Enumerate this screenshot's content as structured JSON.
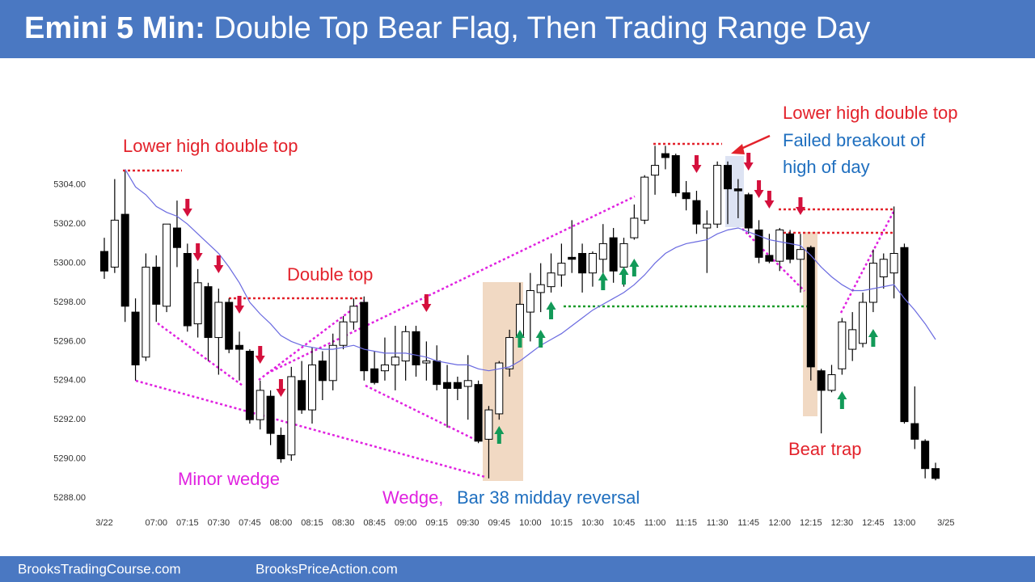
{
  "header": {
    "label": "Emini 5 Min:",
    "title": "Double Top Bear Flag, Then Trading Range Day"
  },
  "footer": {
    "left": "BrooksTradingCourse.com",
    "right": "BrooksPriceAction.com"
  },
  "chart_data": {
    "type": "candlestick",
    "categories": [
      "3/22",
      null,
      null,
      null,
      null,
      "07:00",
      null,
      null,
      "07:15",
      null,
      null,
      "07:30",
      null,
      null,
      "07:45",
      null,
      null,
      "08:00",
      null,
      null,
      "08:15",
      null,
      null,
      "08:30",
      null,
      null,
      "08:45",
      null,
      null,
      "09:00",
      null,
      null,
      "09:15",
      null,
      null,
      "09:30",
      null,
      null,
      "09:45",
      null,
      null,
      "10:00",
      null,
      null,
      "10:15",
      null,
      null,
      "10:30",
      null,
      null,
      "10:45",
      null,
      null,
      "11:00",
      null,
      null,
      "11:15",
      null,
      null,
      "11:30",
      null,
      null,
      "11:45",
      null,
      null,
      "12:00",
      null,
      null,
      "12:15",
      null,
      null,
      "12:30",
      null,
      null,
      "12:45",
      null,
      null,
      "13:00",
      null,
      null,
      null,
      "3/25"
    ],
    "open": [
      5300.6,
      5299.8,
      5302.5,
      5297.5,
      5295.2,
      5299.8,
      5297.8,
      5301.8,
      5300.5,
      5296.9,
      5298.8,
      5296.2,
      5298.0,
      5295.8,
      5295.5,
      5292.0,
      5293.2,
      5291.2,
      5290.2,
      5294.0,
      5292.5,
      5295.0,
      5294.0,
      5295.8,
      5297.0,
      5298.0,
      5294.6,
      5294.5,
      5294.8,
      5295.0,
      5296.5,
      5294.9,
      5295.0,
      5293.9,
      5293.9,
      5293.7,
      5293.8,
      5291.0,
      5292.3,
      5294.6,
      5296.3,
      5297.5,
      5298.5,
      5298.8,
      5299.4,
      5300.3,
      5300.5,
      5299.5,
      5300.2,
      5301.3,
      5299.8,
      5301.3,
      5302.2,
      5304.5,
      5305.6,
      5305.5,
      5303.6,
      5303.2,
      5301.8,
      5302.0,
      5305.0,
      5303.8,
      5303.5,
      5301.7,
      5300.4,
      5300.1,
      5301.5,
      5300.2,
      5300.8,
      5294.5,
      5293.5,
      5294.6,
      5295.6,
      5295.9,
      5298.0,
      5299.3,
      5299.5,
      5300.8,
      5291.8,
      5290.9,
      5289.5,
      null
    ],
    "high": [
      5301.3,
      5304.3,
      5304.7,
      5298.2,
      5300.5,
      5300.4,
      5302.0,
      5303.2,
      5301.0,
      5299.7,
      5299.0,
      5298.7,
      5298.2,
      5296.5,
      5295.6,
      5294.0,
      5293.5,
      5291.6,
      5294.7,
      5295.0,
      5295.7,
      5295.5,
      5296.4,
      5297.3,
      5298.2,
      5298.3,
      5295.5,
      5296.2,
      5296.8,
      5296.8,
      5296.8,
      5296.0,
      5295.8,
      5294.8,
      5294.2,
      5295.3,
      5294.0,
      5292.7,
      5295.0,
      5296.6,
      5299.0,
      5299.5,
      5300.0,
      5300.5,
      5301.0,
      5302.2,
      5301.0,
      5300.6,
      5302.0,
      5301.8,
      5301.3,
      5303.0,
      5304.5,
      5306.0,
      5306.0,
      5305.6,
      5304.2,
      5303.7,
      5302.7,
      5305.2,
      5305.2,
      5304.3,
      5303.6,
      5302.2,
      5301.5,
      5301.8,
      5301.7,
      5301.5,
      5300.9,
      5294.6,
      5294.8,
      5297.2,
      5297.5,
      5298.5,
      5300.7,
      5300.5,
      5302.9,
      5301.0,
      5293.7,
      5291.0,
      5289.8,
      null
    ],
    "low": [
      5299.2,
      5299.5,
      5297.0,
      5294.0,
      5295.0,
      5297.0,
      5297.5,
      5299.8,
      5296.5,
      5296.2,
      5295.0,
      5294.3,
      5295.4,
      5294.0,
      5291.8,
      5291.5,
      5290.7,
      5289.8,
      5289.9,
      5292.3,
      5291.8,
      5293.0,
      5293.5,
      5295.6,
      5296.6,
      5294.0,
      5293.8,
      5294.0,
      5293.5,
      5294.0,
      5294.2,
      5294.0,
      5293.5,
      5291.6,
      5293.0,
      5292.0,
      5290.8,
      5289.0,
      5292.0,
      5294.2,
      5295.7,
      5296.0,
      5297.5,
      5298.5,
      5298.8,
      5299.5,
      5298.5,
      5298.8,
      5299.0,
      5299.0,
      5298.8,
      5301.2,
      5302.0,
      5303.5,
      5304.8,
      5303.4,
      5302.7,
      5301.5,
      5299.5,
      5301.8,
      5302.0,
      5302.3,
      5301.5,
      5300.0,
      5300.0,
      5299.6,
      5300.0,
      5298.5,
      5294.0,
      5291.3,
      5293.4,
      5294.3,
      5295.0,
      5295.7,
      5297.5,
      5298.7,
      5298.2,
      5291.8,
      5290.5,
      5289.0,
      5288.9,
      null
    ],
    "close": [
      5299.6,
      5302.2,
      5297.8,
      5294.8,
      5299.8,
      5297.9,
      5302.0,
      5300.8,
      5296.8,
      5299.0,
      5296.2,
      5298.0,
      5295.6,
      5295.6,
      5292.0,
      5293.5,
      5291.3,
      5290.0,
      5294.2,
      5292.5,
      5294.8,
      5294.0,
      5295.8,
      5297.0,
      5297.8,
      5294.5,
      5293.9,
      5294.8,
      5295.2,
      5296.5,
      5294.8,
      5295.0,
      5293.8,
      5293.6,
      5293.6,
      5294.0,
      5290.9,
      5292.5,
      5294.9,
      5296.2,
      5297.9,
      5298.6,
      5298.9,
      5299.5,
      5300.0,
      5300.2,
      5299.5,
      5300.5,
      5301.0,
      5299.6,
      5301.0,
      5302.3,
      5304.4,
      5305.0,
      5305.4,
      5303.6,
      5303.3,
      5302.0,
      5302.0,
      5305.0,
      5303.8,
      5303.7,
      5301.8,
      5300.3,
      5300.1,
      5301.7,
      5300.2,
      5300.7,
      5294.7,
      5293.5,
      5294.3,
      5297.0,
      5296.6,
      5298.0,
      5300.0,
      5300.2,
      5300.5,
      5291.9,
      5291.0,
      5289.5,
      5289.0,
      null
    ],
    "up_color": "#ffffff",
    "down_color": "#000000",
    "ma_color": "#6a6ae0",
    "ma_values": [
      null,
      null,
      5304.8,
      5303.9,
      5303.5,
      5302.9,
      5302.6,
      5302.4,
      5302.0,
      5301.5,
      5301.0,
      5300.5,
      5299.8,
      5299.0,
      5298.0,
      5297.4,
      5296.9,
      5296.3,
      5296.0,
      5295.8,
      5295.7,
      5295.6,
      5295.6,
      5295.7,
      5295.8,
      5295.6,
      5295.5,
      5295.4,
      5295.4,
      5295.4,
      5295.3,
      5295.2,
      5295.0,
      5294.9,
      5294.8,
      5294.8,
      5294.6,
      5294.5,
      5294.6,
      5294.7,
      5295.0,
      5295.4,
      5295.8,
      5296.1,
      5296.4,
      5296.8,
      5297.2,
      5297.6,
      5297.9,
      5298.2,
      5298.5,
      5298.9,
      5299.4,
      5300.0,
      5300.5,
      5300.8,
      5301.0,
      5301.1,
      5301.2,
      5301.5,
      5301.7,
      5301.8,
      5301.6,
      5301.4,
      5301.2,
      5301.1,
      5301.0,
      5300.9,
      5300.4,
      5299.8,
      5299.3,
      5298.9,
      5298.6,
      5298.6,
      5298.7,
      5298.8,
      5298.9,
      5298.2,
      5297.6,
      5296.9,
      5296.1,
      null
    ],
    "ylim": [
      5287,
      5306
    ],
    "yticks": [
      {
        "value": 5288,
        "label": "5288.00"
      },
      {
        "value": 5290,
        "label": "5290.00"
      },
      {
        "value": 5292,
        "label": "5292.00"
      },
      {
        "value": 5294,
        "label": "5294.00"
      },
      {
        "value": 5296,
        "label": "5296.00"
      },
      {
        "value": 5298,
        "label": "5298.00"
      },
      {
        "value": 5300,
        "label": "5300.00"
      },
      {
        "value": 5302,
        "label": "5302.00"
      },
      {
        "value": 5304,
        "label": "5304.00"
      }
    ],
    "annotations": [
      {
        "text": "Lower high double top",
        "color": "#e3222b"
      },
      {
        "text": "Double top",
        "color": "#e3222b"
      },
      {
        "text": "Minor wedge",
        "color": "#e021e0"
      },
      {
        "text": "Wedge,",
        "color": "#e021e0"
      },
      {
        "text": "Bar 38 midday reversal",
        "color": "#1f6fbf"
      },
      {
        "text": "Lower high double top",
        "color": "#e3222b"
      },
      {
        "text": "Failed breakout of",
        "color": "#1f6fbf"
      },
      {
        "text": "high of day",
        "color": "#1f6fbf"
      },
      {
        "text": "Bear trap",
        "color": "#e3222b"
      }
    ]
  }
}
